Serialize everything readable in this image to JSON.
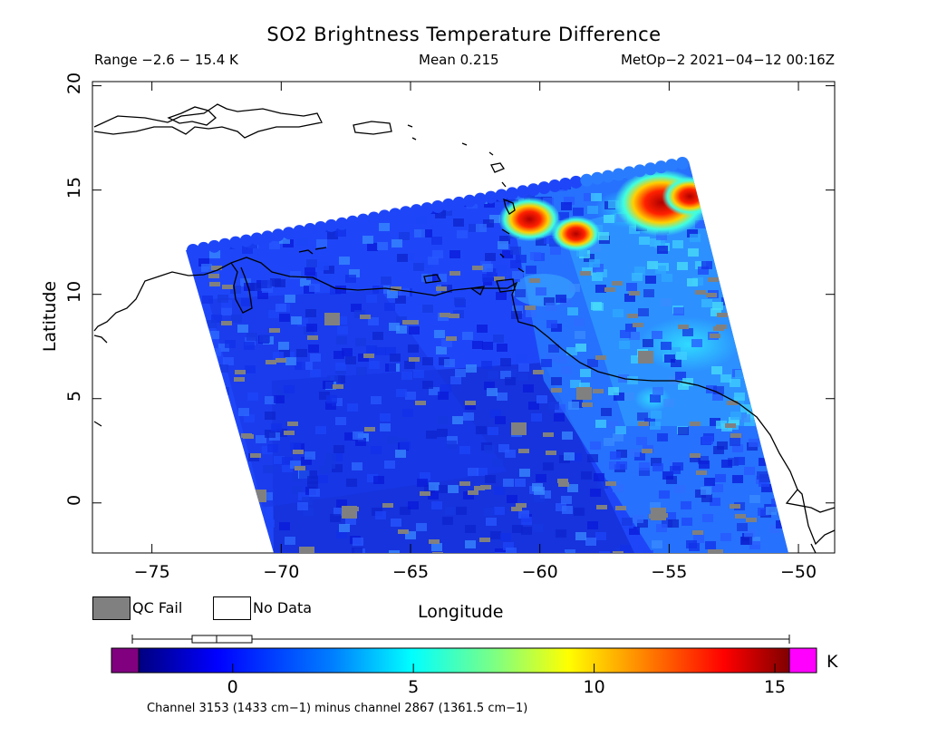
{
  "title": "SO2 Brightness Temperature Difference",
  "range_label": "Range −2.6 − 15.4 K",
  "mean_label": "Mean 0.215",
  "sat_label": "MetOp−2 2021−04−12 00:16Z",
  "x_axis": {
    "label": "Longitude",
    "ticks": [
      "−75",
      "−70",
      "−65",
      "−60",
      "−55",
      "−50"
    ],
    "values": [
      -75,
      -70,
      -65,
      -60,
      -55,
      -50
    ],
    "range": [
      -77.3,
      -48.6
    ]
  },
  "y_axis": {
    "label": "Latitude",
    "ticks": [
      "20",
      "15",
      "10",
      "5",
      "0"
    ],
    "values": [
      20,
      15,
      10,
      5,
      0
    ],
    "range": [
      -2.4,
      20.2
    ]
  },
  "legend": {
    "qc_fail": "QC Fail",
    "no_data": "No Data",
    "qc_color": "#808080"
  },
  "colorbar": {
    "ticks": [
      "0",
      "5",
      "10",
      "15"
    ],
    "values": [
      0,
      5,
      10,
      15
    ],
    "range": [
      -2.6,
      15.4
    ],
    "unit": "K",
    "under_color": "#800080",
    "over_color": "#ff00ff",
    "caption": "Channel 3153 (1433 cm−1) minus channel 2867 (1361.5 cm−1)"
  },
  "hotspots": [
    {
      "lon": -55.3,
      "lat": 14.4,
      "value": 15.0
    },
    {
      "lon": -60.4,
      "lat": 13.6,
      "value": 12.5
    },
    {
      "lon": -58.6,
      "lat": 12.9,
      "value": 11.5
    },
    {
      "lon": -54.2,
      "lat": 14.7,
      "value": 12.0
    }
  ],
  "colors": {
    "plume_bg": "#1f48ff",
    "coast": "#000000"
  }
}
